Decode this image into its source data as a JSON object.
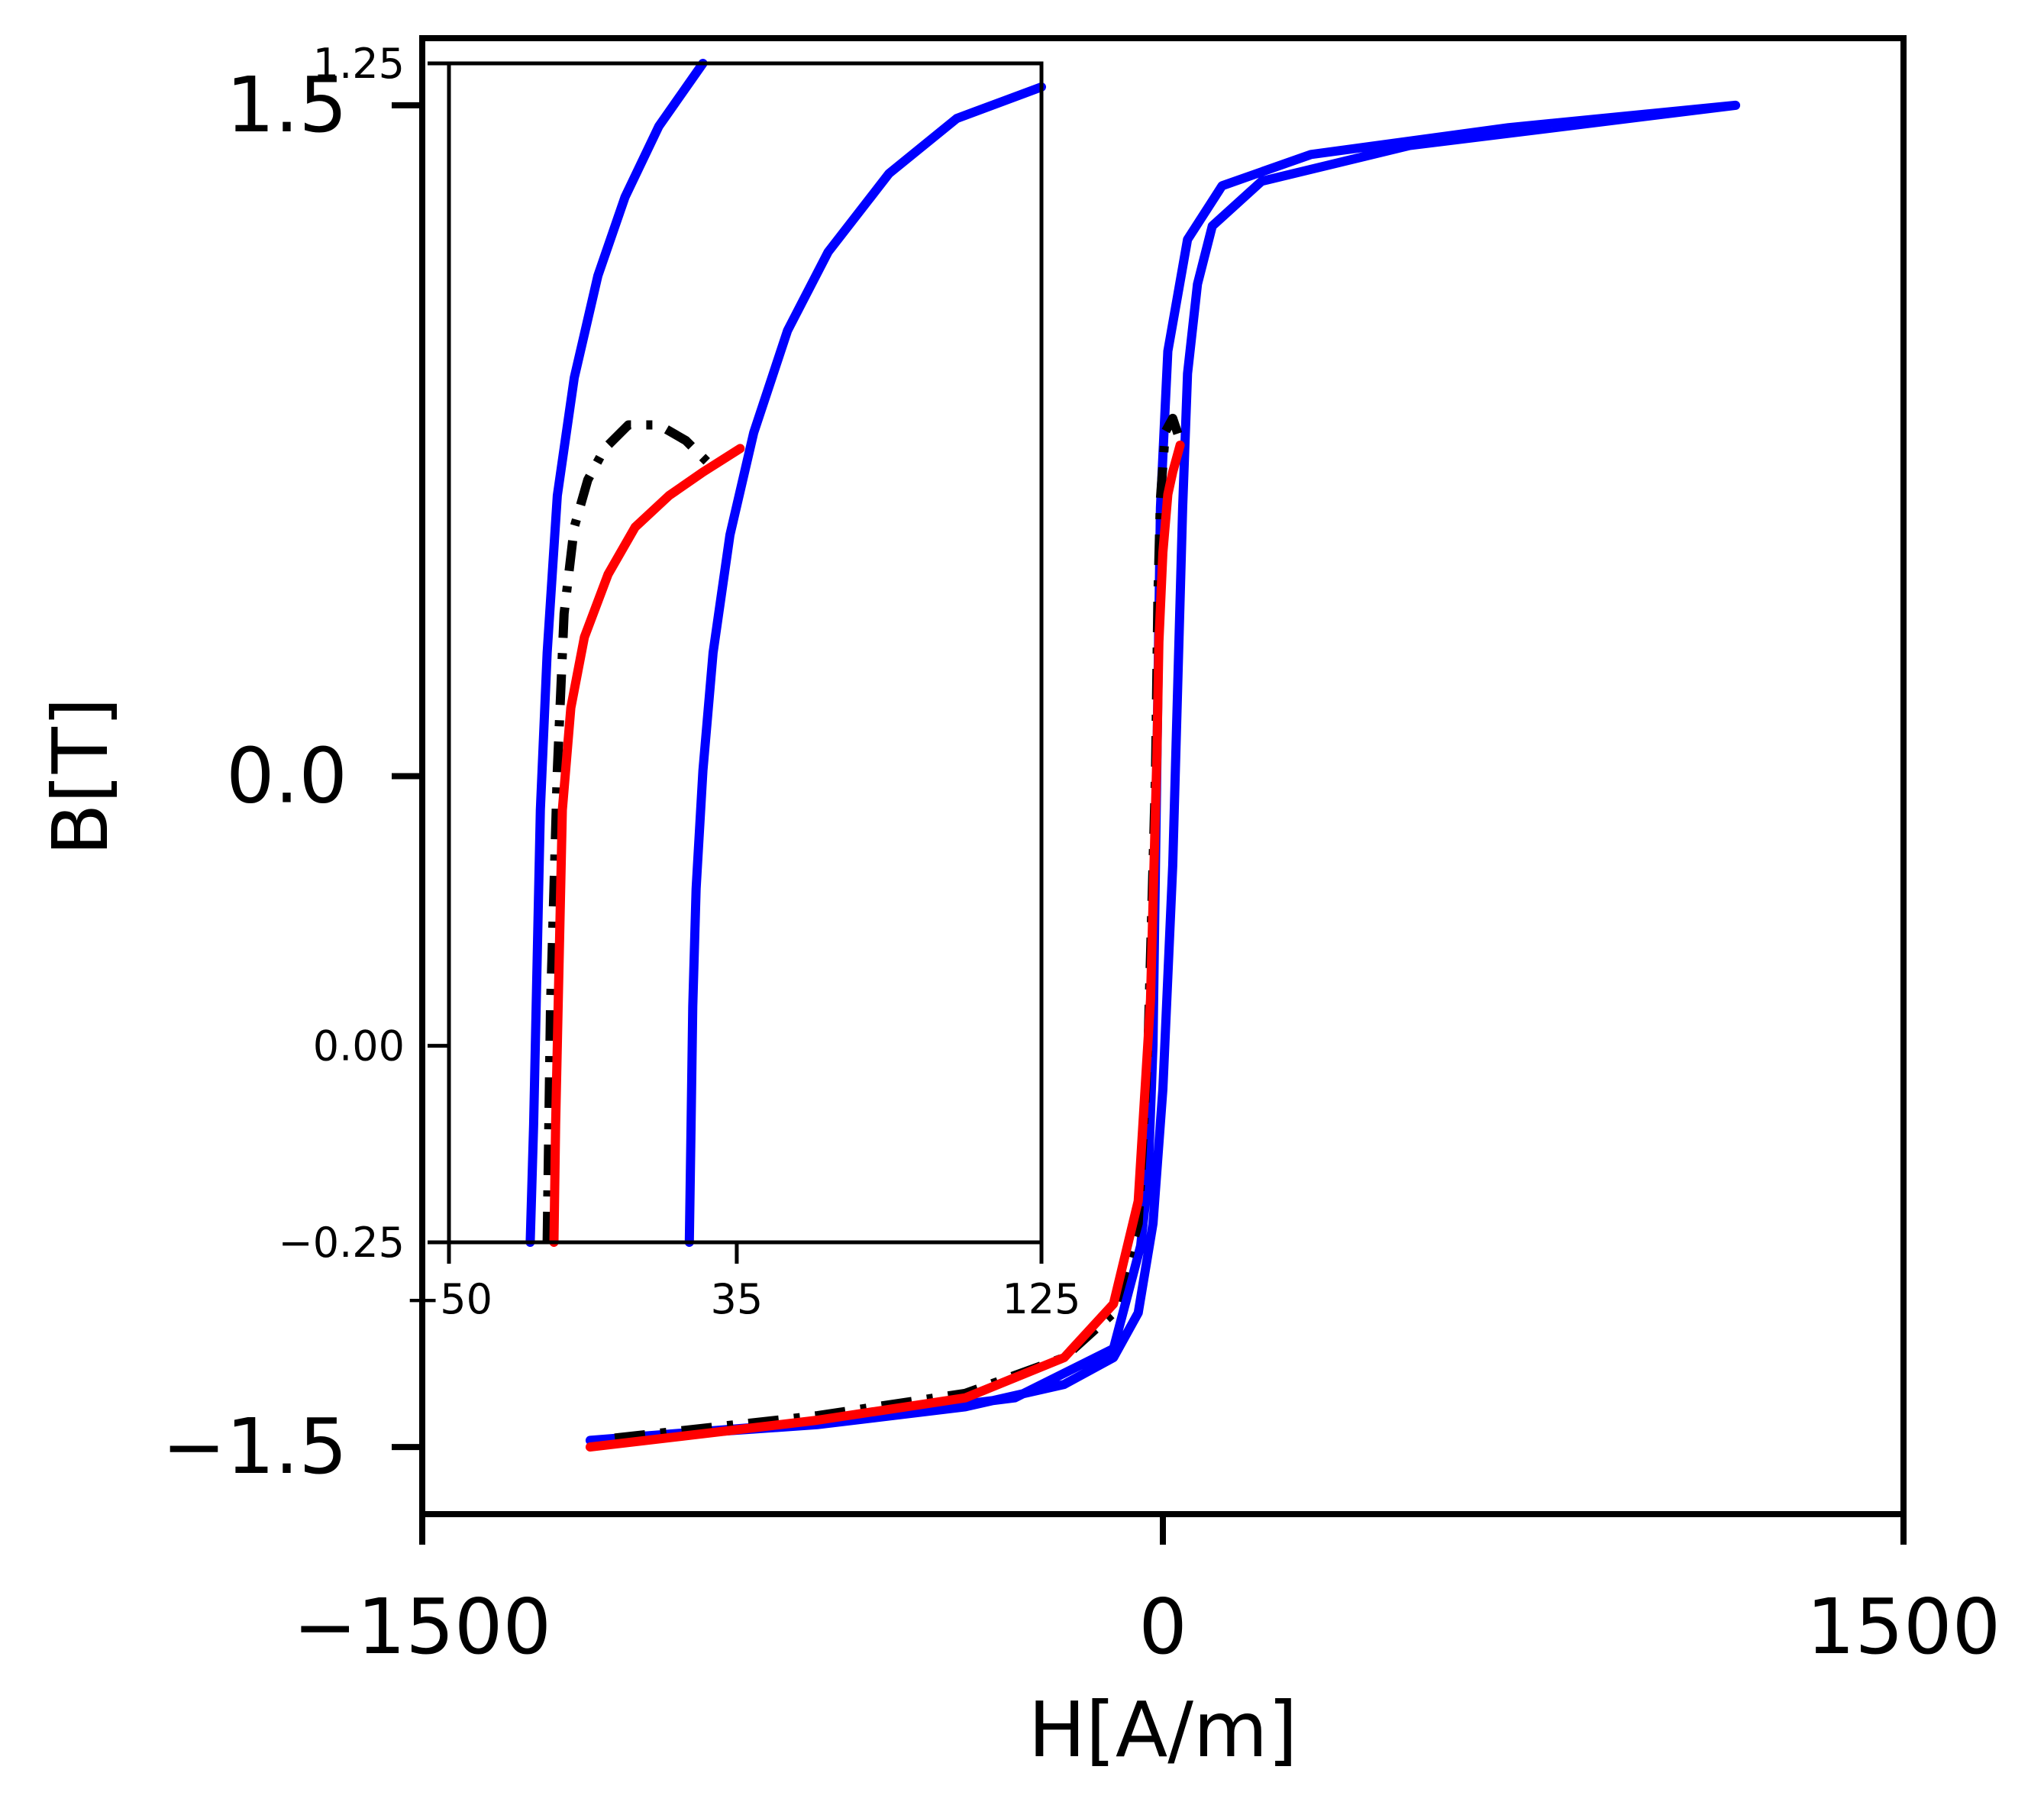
{
  "chart_data": [
    {
      "panel": "main",
      "type": "line",
      "xlabel": "H[A/m]",
      "ylabel": "B[T]",
      "xlim": [
        -1500,
        1500
      ],
      "ylim": [
        -1.65,
        1.65
      ],
      "xticks": [
        {
          "value": -1500,
          "label": "−1500"
        },
        {
          "value": 0,
          "label": "0"
        },
        {
          "value": 1500,
          "label": "1500"
        }
      ],
      "yticks": [
        {
          "value": -1.5,
          "label": "−1.5"
        },
        {
          "value": 0.0,
          "label": "0.0"
        },
        {
          "value": 1.5,
          "label": "1.5"
        }
      ],
      "grid": false,
      "series": [
        {
          "color": "#0000ff",
          "style": "solid",
          "points": [
            [
              -1160,
              -1.485
            ],
            [
              -700,
              -1.45
            ],
            [
              -400,
              -1.41
            ],
            [
              -200,
              -1.36
            ],
            [
              -100,
              -1.3
            ],
            [
              -50,
              -1.2
            ],
            [
              -20,
              -1.0
            ],
            [
              0,
              -0.7
            ],
            [
              20,
              -0.2
            ],
            [
              30,
              0.2
            ],
            [
              40,
              0.6
            ],
            [
              50,
              0.9
            ],
            [
              70,
              1.1
            ],
            [
              100,
              1.23
            ],
            [
              200,
              1.33
            ],
            [
              500,
              1.41
            ],
            [
              1160,
              1.5
            ],
            [
              700,
              1.45
            ],
            [
              300,
              1.39
            ],
            [
              120,
              1.32
            ],
            [
              50,
              1.2
            ],
            [
              10,
              0.95
            ],
            [
              -5,
              0.6
            ],
            [
              -15,
              -0.2
            ],
            [
              -20,
              -0.6
            ],
            [
              -30,
              -0.9
            ],
            [
              -45,
              -1.05
            ],
            [
              -100,
              -1.28
            ],
            [
              -300,
              -1.39
            ],
            [
              -700,
              -1.445
            ],
            [
              -1160,
              -1.485
            ]
          ]
        },
        {
          "color": "#000000",
          "style": "dashdot",
          "points": [
            [
              -1110,
              -1.48
            ],
            [
              -700,
              -1.43
            ],
            [
              -400,
              -1.38
            ],
            [
              -200,
              -1.3
            ],
            [
              -100,
              -1.2
            ],
            [
              -50,
              -1.0
            ],
            [
              -30,
              -0.6
            ],
            [
              -15,
              0.0
            ],
            [
              -10,
              0.4
            ],
            [
              -5,
              0.62
            ],
            [
              5,
              0.77
            ],
            [
              20,
              0.8
            ],
            [
              35,
              0.75
            ]
          ]
        },
        {
          "color": "#ff0000",
          "style": "solid",
          "points": [
            [
              -1160,
              -1.5
            ],
            [
              -700,
              -1.44
            ],
            [
              -400,
              -1.39
            ],
            [
              -200,
              -1.3
            ],
            [
              -100,
              -1.18
            ],
            [
              -50,
              -0.95
            ],
            [
              -25,
              -0.5
            ],
            [
              -12,
              0.05
            ],
            [
              -8,
              0.3
            ],
            [
              0,
              0.5
            ],
            [
              10,
              0.63
            ],
            [
              20,
              0.68
            ],
            [
              35,
              0.74
            ]
          ]
        }
      ]
    },
    {
      "panel": "inset",
      "type": "line",
      "xlim": [
        -50,
        125
      ],
      "ylim": [
        -0.25,
        1.25
      ],
      "xticks": [
        {
          "value": -50,
          "label": "−50"
        },
        {
          "value": 35,
          "label": "35"
        },
        {
          "value": 125,
          "label": "125"
        }
      ],
      "yticks": [
        {
          "value": -0.25,
          "label": "−0.25"
        },
        {
          "value": 0.0,
          "label": "0.00"
        },
        {
          "value": 1.25,
          "label": "1.25"
        }
      ],
      "series": [
        {
          "color": "#0000ff",
          "style": "solid",
          "points": [
            [
              -26,
              -0.25
            ],
            [
              -25,
              -0.1
            ],
            [
              -24,
              0.1
            ],
            [
              -23,
              0.3
            ],
            [
              -21,
              0.5
            ],
            [
              -18,
              0.7
            ],
            [
              -13,
              0.85
            ],
            [
              -6,
              0.98
            ],
            [
              2,
              1.08
            ],
            [
              12,
              1.17
            ],
            [
              25,
              1.25
            ]
          ]
        },
        {
          "color": "#0000ff",
          "style": "solid",
          "points": [
            [
              21,
              -0.25
            ],
            [
              21.5,
              -0.1
            ],
            [
              22,
              0.05
            ],
            [
              23,
              0.2
            ],
            [
              25,
              0.35
            ],
            [
              28,
              0.5
            ],
            [
              33,
              0.65
            ],
            [
              40,
              0.78
            ],
            [
              50,
              0.91
            ],
            [
              62,
              1.01
            ],
            [
              80,
              1.11
            ],
            [
              100,
              1.18
            ],
            [
              125,
              1.22
            ]
          ]
        },
        {
          "color": "#000000",
          "style": "dashdot",
          "points": [
            [
              -21,
              -0.25
            ],
            [
              -20.5,
              -0.1
            ],
            [
              -20,
              0.05
            ],
            [
              -19,
              0.2
            ],
            [
              -18,
              0.35
            ],
            [
              -16,
              0.55
            ],
            [
              -13,
              0.66
            ],
            [
              -9,
              0.72
            ],
            [
              -4,
              0.76
            ],
            [
              3,
              0.79
            ],
            [
              12,
              0.79
            ],
            [
              20,
              0.77
            ],
            [
              27,
              0.74
            ]
          ]
        },
        {
          "color": "#ff0000",
          "style": "solid",
          "points": [
            [
              -19,
              -0.25
            ],
            [
              -18.5,
              -0.1
            ],
            [
              -17.5,
              0.1
            ],
            [
              -16.5,
              0.3
            ],
            [
              -14,
              0.43
            ],
            [
              -10,
              0.52
            ],
            [
              -3,
              0.6
            ],
            [
              5,
              0.66
            ],
            [
              15,
              0.7
            ],
            [
              25,
              0.73
            ],
            [
              36,
              0.76
            ]
          ]
        }
      ]
    }
  ]
}
